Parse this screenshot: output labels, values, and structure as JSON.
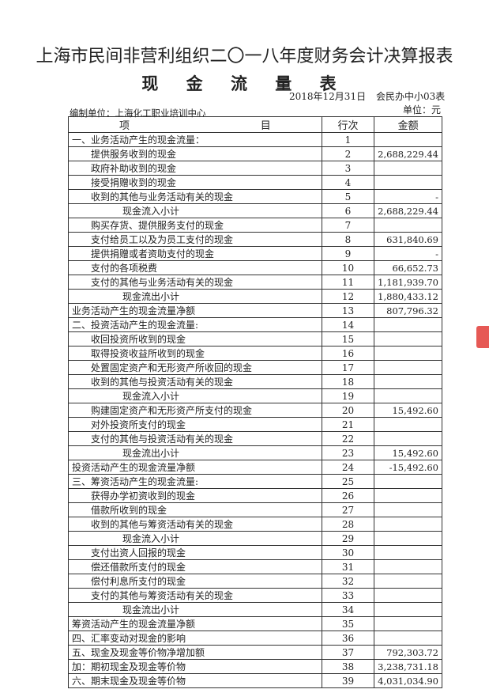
{
  "header": {
    "title": "上海市民间非营利组织二〇一八年度财务会计决算报表",
    "subtitle": "现 金 流 量 表",
    "date": "2018年12月31日",
    "form_no": "会民办中小03表",
    "unit": "单位：元",
    "organization": "编制单位：上海化工职业培训中心"
  },
  "table": {
    "columns": {
      "item_left": "项",
      "item_right": "目",
      "row_no": "行次",
      "amount": "金额"
    },
    "rows": [
      {
        "level": 0,
        "item": "一、业务活动产生的现金流量：",
        "no": "1",
        "amount": ""
      },
      {
        "level": 1,
        "item": "提供服务收到的现金",
        "no": "2",
        "amount": "2,688,229.44"
      },
      {
        "level": 1,
        "item": "政府补助收到的现金",
        "no": "3",
        "amount": ""
      },
      {
        "level": 1,
        "item": "接受捐赠收到的现金",
        "no": "4",
        "amount": ""
      },
      {
        "level": 1,
        "item": "收到的其他与业务活动有关的现金",
        "no": "5",
        "amount": "-"
      },
      {
        "level": 2,
        "item": "现金流入小计",
        "no": "6",
        "amount": "2,688,229.44"
      },
      {
        "level": 1,
        "item": "购买存货、提供服务支付的现金",
        "no": "7",
        "amount": ""
      },
      {
        "level": 1,
        "item": "支付给员工以及为员工支付的现金",
        "no": "8",
        "amount": "631,840.69"
      },
      {
        "level": 1,
        "item": "提供捐赠或者资助支付的现金",
        "no": "9",
        "amount": "-"
      },
      {
        "level": 1,
        "item": "支付的各项税费",
        "no": "10",
        "amount": "66,652.73"
      },
      {
        "level": 1,
        "item": "支付的其他与业务活动有关的现金",
        "no": "11",
        "amount": "1,181,939.70"
      },
      {
        "level": 2,
        "item": "现金流出小计",
        "no": "12",
        "amount": "1,880,433.12"
      },
      {
        "level": 0,
        "item": "业务活动产生的现金流量净额",
        "no": "13",
        "amount": "807,796.32"
      },
      {
        "level": 0,
        "item": "二、投资活动产生的现金流量:",
        "no": "14",
        "amount": ""
      },
      {
        "level": 1,
        "item": "收回投资所收到的现金",
        "no": "15",
        "amount": ""
      },
      {
        "level": 1,
        "item": "取得投资收益所收到的现金",
        "no": "16",
        "amount": ""
      },
      {
        "level": 1,
        "item": "处置固定资产和无形资产所收回的现金",
        "no": "17",
        "amount": ""
      },
      {
        "level": 1,
        "item": "收到的其他与投资活动有关的现金",
        "no": "18",
        "amount": ""
      },
      {
        "level": 2,
        "item": "现金流入小计",
        "no": "19",
        "amount": ""
      },
      {
        "level": 1,
        "item": "购建固定资产和无形资产所支付的现金",
        "no": "20",
        "amount": "15,492.60"
      },
      {
        "level": 1,
        "item": "对外投资所支付的现金",
        "no": "21",
        "amount": ""
      },
      {
        "level": 1,
        "item": "支付的其他与投资活动有关的现金",
        "no": "22",
        "amount": ""
      },
      {
        "level": 2,
        "item": "现金流出小计",
        "no": "23",
        "amount": "15,492.60"
      },
      {
        "level": 0,
        "item": "投资活动产生的现金流量净额",
        "no": "24",
        "amount": "-15,492.60"
      },
      {
        "level": 0,
        "item": "三、筹资活动产生的现金流量:",
        "no": "25",
        "amount": ""
      },
      {
        "level": 1,
        "item": "获得办学初资收到的现金",
        "no": "26",
        "amount": ""
      },
      {
        "level": 1,
        "item": "借款所收到的现金",
        "no": "27",
        "amount": ""
      },
      {
        "level": 1,
        "item": "收到的其他与筹资活动有关的现金",
        "no": "28",
        "amount": ""
      },
      {
        "level": 2,
        "item": "现金流入小计",
        "no": "29",
        "amount": ""
      },
      {
        "level": 1,
        "item": "支付出资人回报的现金",
        "no": "30",
        "amount": ""
      },
      {
        "level": 1,
        "item": "偿还借款所支付的现金",
        "no": "31",
        "amount": ""
      },
      {
        "level": 1,
        "item": "偿付利息所支付的现金",
        "no": "32",
        "amount": ""
      },
      {
        "level": 1,
        "item": "支付的其他与筹资活动有关的现金",
        "no": "33",
        "amount": ""
      },
      {
        "level": 2,
        "item": "现金流出小计",
        "no": "34",
        "amount": ""
      },
      {
        "level": 0,
        "item": "筹资活动产生的现金流量净额",
        "no": "35",
        "amount": ""
      },
      {
        "level": 0,
        "item": "四、汇率变动对现金的影响",
        "no": "36",
        "amount": ""
      },
      {
        "level": 0,
        "item": "五、现金及现金等价物净增加额",
        "no": "37",
        "amount": "792,303.72"
      },
      {
        "level": 0,
        "item": "加：期初现金及现金等价物",
        "no": "38",
        "amount": "3,238,731.18"
      },
      {
        "level": 0,
        "item": "六、期末现金及现金等价物",
        "no": "39",
        "amount": "4,031,034.90"
      }
    ]
  },
  "colors": {
    "stamp": "#e0302a"
  }
}
